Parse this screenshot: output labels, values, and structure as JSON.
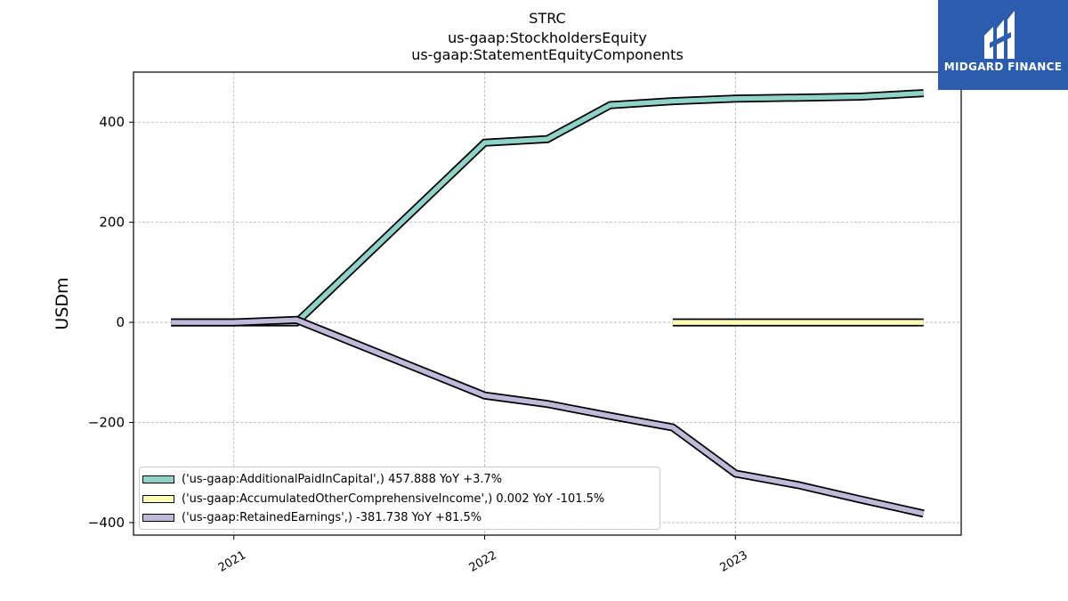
{
  "title": {
    "line1": "STRC",
    "line2": "us-gaap:StockholdersEquity",
    "line3": "us-gaap:StatementEquityComponents"
  },
  "logo": {
    "text": "MIDGARD FINANCE",
    "background": "#2b5cae"
  },
  "chart_data": {
    "type": "line",
    "ylabel": "USDm",
    "xlabel": "",
    "ylim": [
      -425,
      500
    ],
    "xlim": [
      2020.6,
      2023.9
    ],
    "yticks": [
      -400,
      -200,
      0,
      200,
      400
    ],
    "ytick_labels": [
      "−400",
      "−200",
      "0",
      "200",
      "400"
    ],
    "xticks": [
      2021,
      2022,
      2023
    ],
    "xtick_labels": [
      "2021",
      "2022",
      "2023"
    ],
    "grid": true,
    "legend_position": "lower-left",
    "series": [
      {
        "name": "('us-gaap:AdditionalPaidInCapital',) 457.888 YoY +3.7%",
        "color": "#8dd3c7",
        "x": [
          2020.75,
          2021.0,
          2021.25,
          2022.0,
          2022.25,
          2022.5,
          2022.75,
          2023.0,
          2023.25,
          2023.5,
          2023.75
        ],
        "y": [
          0,
          0,
          0,
          359,
          366,
          434,
          442,
          447,
          449,
          451,
          458
        ]
      },
      {
        "name": "('us-gaap:AccumulatedOtherComprehensiveIncome',) 0.002 YoY -101.5%",
        "color": "#ffffb3",
        "x": [
          2022.75,
          2023.0,
          2023.25,
          2023.5,
          2023.75
        ],
        "y": [
          0,
          0,
          0,
          0,
          0
        ]
      },
      {
        "name": "('us-gaap:RetainedEarnings',) -381.738 YoY +81.5%",
        "color": "#bebada",
        "x": [
          2020.75,
          2021.0,
          2021.25,
          2022.0,
          2022.25,
          2022.5,
          2022.75,
          2023.0,
          2023.25,
          2023.5,
          2023.75
        ],
        "y": [
          0,
          0,
          5,
          -146,
          -163,
          -187,
          -210,
          -302,
          -325,
          -354,
          -382
        ]
      }
    ]
  }
}
